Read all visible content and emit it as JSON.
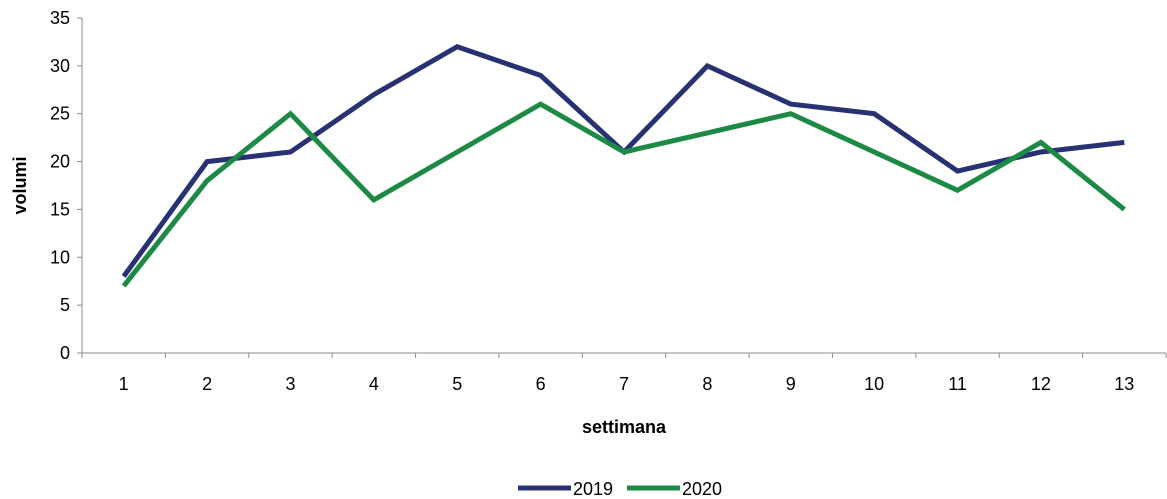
{
  "chart_data": {
    "type": "line",
    "xlabel": "settimana",
    "ylabel": "volumi",
    "categories": [
      "1",
      "2",
      "3",
      "4",
      "5",
      "6",
      "7",
      "8",
      "9",
      "10",
      "11",
      "12",
      "13"
    ],
    "yticks": [
      "0",
      "5",
      "10",
      "15",
      "20",
      "25",
      "30",
      "35"
    ],
    "ylim": [
      0,
      35
    ],
    "grid": false,
    "legend_position": "bottom",
    "series": [
      {
        "name": "2019",
        "color": "#283272",
        "values": [
          8,
          20,
          21,
          27,
          32,
          29,
          21,
          30,
          26,
          25,
          19,
          21,
          22
        ]
      },
      {
        "name": "2020",
        "color": "#1c8a45",
        "values": [
          7,
          18,
          25,
          16,
          21,
          26,
          21,
          23,
          25,
          21,
          17,
          22,
          15
        ]
      }
    ]
  }
}
